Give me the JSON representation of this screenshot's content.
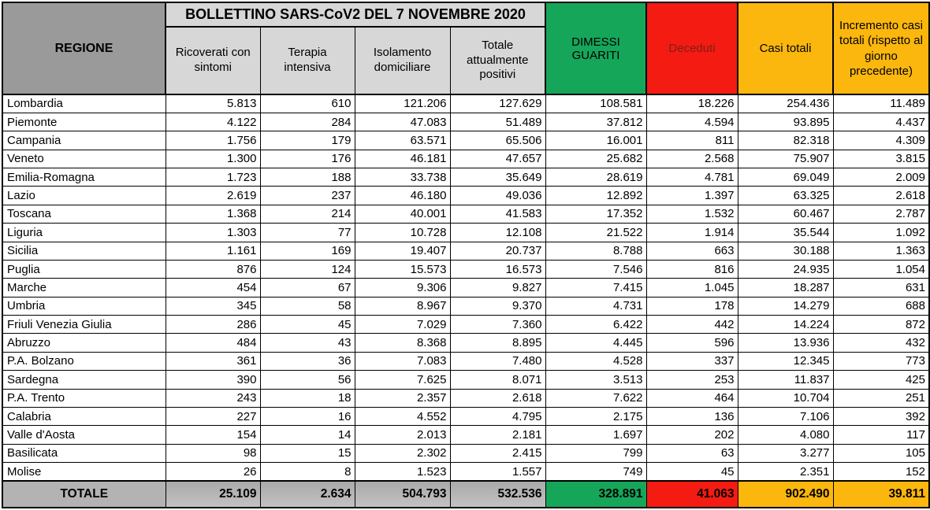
{
  "colors": {
    "region_header_bg": "#9a9a9a",
    "panel_gray": "#d7d7d7",
    "total_gray": "#b3b3b3",
    "green": "#16a65a",
    "red": "#f41b12",
    "orange": "#fbb70d",
    "deceduti_text": "#7e2014"
  },
  "chart_data": {
    "type": "table",
    "title": "BOLLETTINO SARS-CoV2 DEL 7 NOVEMBRE 2020",
    "row_header": "REGIONE",
    "columns": [
      "Ricoverati con sintomi",
      "Terapia intensiva",
      "Isolamento domiciliare",
      "Totale attualmente positivi",
      "DIMESSI GUARITI",
      "Deceduti",
      "Casi totali",
      "Incremento casi totali (rispetto al giorno precedente)"
    ],
    "rows": [
      [
        "Lombardia",
        "5.813",
        "610",
        "121.206",
        "127.629",
        "108.581",
        "18.226",
        "254.436",
        "11.489"
      ],
      [
        "Piemonte",
        "4.122",
        "284",
        "47.083",
        "51.489",
        "37.812",
        "4.594",
        "93.895",
        "4.437"
      ],
      [
        "Campania",
        "1.756",
        "179",
        "63.571",
        "65.506",
        "16.001",
        "811",
        "82.318",
        "4.309"
      ],
      [
        "Veneto",
        "1.300",
        "176",
        "46.181",
        "47.657",
        "25.682",
        "2.568",
        "75.907",
        "3.815"
      ],
      [
        "Emilia-Romagna",
        "1.723",
        "188",
        "33.738",
        "35.649",
        "28.619",
        "4.781",
        "69.049",
        "2.009"
      ],
      [
        "Lazio",
        "2.619",
        "237",
        "46.180",
        "49.036",
        "12.892",
        "1.397",
        "63.325",
        "2.618"
      ],
      [
        "Toscana",
        "1.368",
        "214",
        "40.001",
        "41.583",
        "17.352",
        "1.532",
        "60.467",
        "2.787"
      ],
      [
        "Liguria",
        "1.303",
        "77",
        "10.728",
        "12.108",
        "21.522",
        "1.914",
        "35.544",
        "1.092"
      ],
      [
        "Sicilia",
        "1.161",
        "169",
        "19.407",
        "20.737",
        "8.788",
        "663",
        "30.188",
        "1.363"
      ],
      [
        "Puglia",
        "876",
        "124",
        "15.573",
        "16.573",
        "7.546",
        "816",
        "24.935",
        "1.054"
      ],
      [
        "Marche",
        "454",
        "67",
        "9.306",
        "9.827",
        "7.415",
        "1.045",
        "18.287",
        "631"
      ],
      [
        "Umbria",
        "345",
        "58",
        "8.967",
        "9.370",
        "4.731",
        "178",
        "14.279",
        "688"
      ],
      [
        "Friuli Venezia Giulia",
        "286",
        "45",
        "7.029",
        "7.360",
        "6.422",
        "442",
        "14.224",
        "872"
      ],
      [
        "Abruzzo",
        "484",
        "43",
        "8.368",
        "8.895",
        "4.445",
        "596",
        "13.936",
        "432"
      ],
      [
        "P.A. Bolzano",
        "361",
        "36",
        "7.083",
        "7.480",
        "4.528",
        "337",
        "12.345",
        "773"
      ],
      [
        "Sardegna",
        "390",
        "56",
        "7.625",
        "8.071",
        "3.513",
        "253",
        "11.837",
        "425"
      ],
      [
        "P.A. Trento",
        "243",
        "18",
        "2.357",
        "2.618",
        "7.622",
        "464",
        "10.704",
        "251"
      ],
      [
        "Calabria",
        "227",
        "16",
        "4.552",
        "4.795",
        "2.175",
        "136",
        "7.106",
        "392"
      ],
      [
        "Valle d'Aosta",
        "154",
        "14",
        "2.013",
        "2.181",
        "1.697",
        "202",
        "4.080",
        "117"
      ],
      [
        "Basilicata",
        "98",
        "15",
        "2.302",
        "2.415",
        "799",
        "63",
        "3.277",
        "105"
      ],
      [
        "Molise",
        "26",
        "8",
        "1.523",
        "1.557",
        "749",
        "45",
        "2.351",
        "152"
      ]
    ],
    "total_row": [
      "TOTALE",
      "25.109",
      "2.634",
      "504.793",
      "532.536",
      "328.891",
      "41.063",
      "902.490",
      "39.811"
    ]
  }
}
